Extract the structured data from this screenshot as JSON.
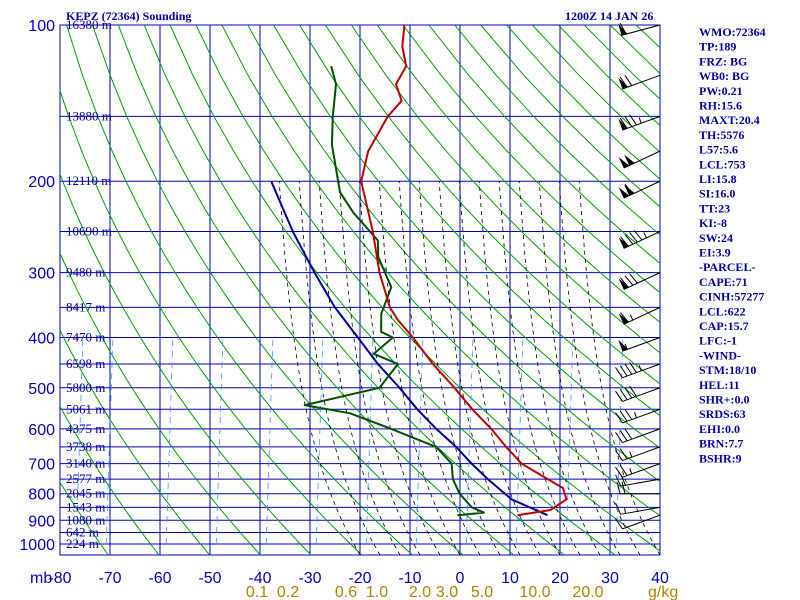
{
  "header": {
    "station": "KEPZ (72364) Sounding",
    "time": "1200Z 14 JAN 26"
  },
  "colors": {
    "grid": "#0000c0",
    "dry_adiabat": "#00a000",
    "moist_adiabat": "#000000",
    "mixing_ratio": "#4090ff",
    "temperature": "#c00000",
    "dewpoint": "#005000",
    "parcel": "#0000a0",
    "labels": "#0000a0",
    "mix_labels": "#b08400"
  },
  "chart_data": {
    "type": "skew-t",
    "xunit": "mb",
    "mix_unit": "g/kg",
    "pressure_ticks": [
      "100",
      "200",
      "300",
      "400",
      "500",
      "600",
      "700",
      "800",
      "900",
      "1000"
    ],
    "temperature_ticks": [
      "-80",
      "-70",
      "-60",
      "-50",
      "-40",
      "-30",
      "-20",
      "-10",
      "0",
      "10",
      "20",
      "30",
      "40"
    ],
    "mixing_ratio_ticks": [
      "0.1",
      "0.2",
      "0.6",
      "1.0",
      "2.0",
      "3.0",
      "5.0",
      "10.0",
      "20.0"
    ],
    "height_labels": [
      {
        "p": 100,
        "label": "16380 m"
      },
      {
        "p": 150,
        "label": "13880 m"
      },
      {
        "p": 200,
        "label": "12110 m"
      },
      {
        "p": 250,
        "label": "10690 m"
      },
      {
        "p": 300,
        "label": "9480 m"
      },
      {
        "p": 350,
        "label": "8417 m"
      },
      {
        "p": 400,
        "label": "7470 m"
      },
      {
        "p": 450,
        "label": "6598 m"
      },
      {
        "p": 500,
        "label": "5800 m"
      },
      {
        "p": 550,
        "label": "5061 m"
      },
      {
        "p": 600,
        "label": "4375 m"
      },
      {
        "p": 650,
        "label": "3738 m"
      },
      {
        "p": 700,
        "label": "3140 m"
      },
      {
        "p": 750,
        "label": "2577 m"
      },
      {
        "p": 800,
        "label": "2045 m"
      },
      {
        "p": 850,
        "label": "1543 m"
      },
      {
        "p": 900,
        "label": "1080 m"
      },
      {
        "p": 950,
        "label": "642 m"
      },
      {
        "p": 1000,
        "label": "224 m"
      }
    ],
    "temperature_profile": [
      [
        880,
        7
      ],
      [
        860,
        13
      ],
      [
        820,
        15
      ],
      [
        780,
        13
      ],
      [
        750,
        9
      ],
      [
        700,
        2
      ],
      [
        650,
        -3
      ],
      [
        600,
        -8
      ],
      [
        550,
        -14
      ],
      [
        500,
        -20
      ],
      [
        450,
        -27
      ],
      [
        400,
        -34
      ],
      [
        370,
        -39
      ],
      [
        350,
        -42
      ],
      [
        300,
        -48
      ],
      [
        250,
        -54
      ],
      [
        200,
        -62
      ],
      [
        175,
        -64
      ],
      [
        150,
        -64
      ],
      [
        140,
        -63
      ],
      [
        130,
        -66
      ],
      [
        120,
        -66
      ],
      [
        110,
        -69
      ],
      [
        100,
        -71
      ]
    ],
    "dewpoint_profile": [
      [
        880,
        -5
      ],
      [
        870,
        0
      ],
      [
        850,
        -3
      ],
      [
        800,
        -7
      ],
      [
        750,
        -10
      ],
      [
        700,
        -12
      ],
      [
        650,
        -17
      ],
      [
        600,
        -28
      ],
      [
        560,
        -38
      ],
      [
        540,
        -48
      ],
      [
        500,
        -35
      ],
      [
        450,
        -34
      ],
      [
        430,
        -40
      ],
      [
        400,
        -38
      ],
      [
        390,
        -41
      ],
      [
        360,
        -43
      ],
      [
        320,
        -44
      ],
      [
        280,
        -50
      ],
      [
        260,
        -52
      ],
      [
        230,
        -60
      ],
      [
        210,
        -65
      ],
      [
        170,
        -72
      ],
      [
        150,
        -75
      ],
      [
        130,
        -78
      ],
      [
        120,
        -81
      ]
    ],
    "parcel_profile": [
      [
        880,
        13
      ],
      [
        820,
        4
      ],
      [
        750,
        -3
      ],
      [
        700,
        -8
      ],
      [
        650,
        -13
      ],
      [
        600,
        -19
      ],
      [
        550,
        -25
      ],
      [
        500,
        -31
      ],
      [
        450,
        -38
      ],
      [
        400,
        -45
      ],
      [
        350,
        -53
      ],
      [
        300,
        -61
      ],
      [
        250,
        -70
      ],
      [
        200,
        -80
      ]
    ],
    "wind_barbs": [
      {
        "p": 880,
        "dir": 250,
        "spd": 10
      },
      {
        "p": 850,
        "dir": 260,
        "spd": 15
      },
      {
        "p": 800,
        "dir": 270,
        "spd": 20
      },
      {
        "p": 750,
        "dir": 260,
        "spd": 20
      },
      {
        "p": 700,
        "dir": 250,
        "spd": 25
      },
      {
        "p": 650,
        "dir": 250,
        "spd": 25
      },
      {
        "p": 600,
        "dir": 250,
        "spd": 30
      },
      {
        "p": 550,
        "dir": 250,
        "spd": 35
      },
      {
        "p": 500,
        "dir": 250,
        "spd": 40
      },
      {
        "p": 450,
        "dir": 250,
        "spd": 45
      },
      {
        "p": 400,
        "dir": 250,
        "spd": 55
      },
      {
        "p": 350,
        "dir": 245,
        "spd": 65
      },
      {
        "p": 300,
        "dir": 245,
        "spd": 80
      },
      {
        "p": 250,
        "dir": 245,
        "spd": 95
      },
      {
        "p": 200,
        "dir": 245,
        "spd": 110
      },
      {
        "p": 175,
        "dir": 245,
        "spd": 100
      },
      {
        "p": 150,
        "dir": 250,
        "spd": 85
      },
      {
        "p": 125,
        "dir": 250,
        "spd": 70
      },
      {
        "p": 100,
        "dir": 255,
        "spd": 60
      }
    ]
  },
  "indices": [
    "WMO:72364",
    "TP:189",
    "FRZ: BG",
    "WB0: BG",
    "PW:0.21",
    "RH:15.6",
    "MAXT:20.4",
    "TH:5576",
    "L57:5.6",
    "LCL:753",
    "LI:15.8",
    "SI:16.0",
    "TT:23",
    "KI:-8",
    "SW:24",
    "EI:3.9",
    "-PARCEL-",
    "CAPE:71",
    "CINH:57277",
    "LCL:622",
    "CAP:15.7",
    "LFC:-1",
    "-WIND-",
    "STM:18/10",
    "HEL:11",
    "SHR+:0.0",
    "SRDS:63",
    "EHI:0.0",
    "BRN:7.7",
    "BSHR:9"
  ]
}
